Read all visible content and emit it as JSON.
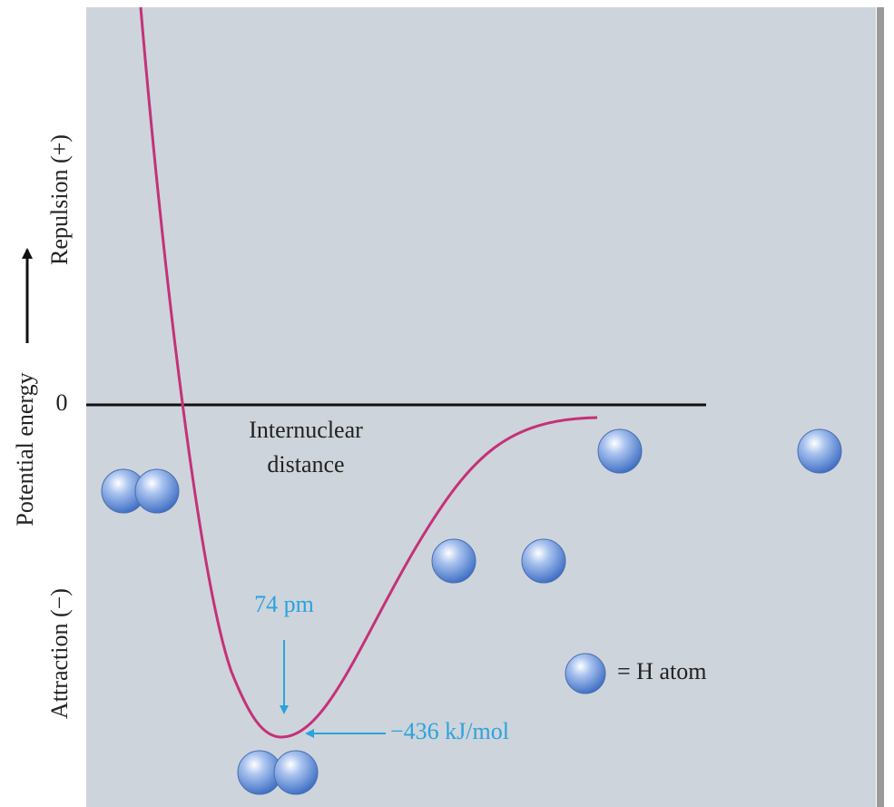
{
  "axis": {
    "zero": "0",
    "upper": "Repulsion (+)",
    "title": "Potential energy",
    "lower": "Attraction (−)"
  },
  "x_label": [
    "Internuclear",
    "distance"
  ],
  "annotations": {
    "bond_length": "74 pm",
    "bond_energy": "−436 kJ/mol"
  },
  "legend": "= H atom"
}
